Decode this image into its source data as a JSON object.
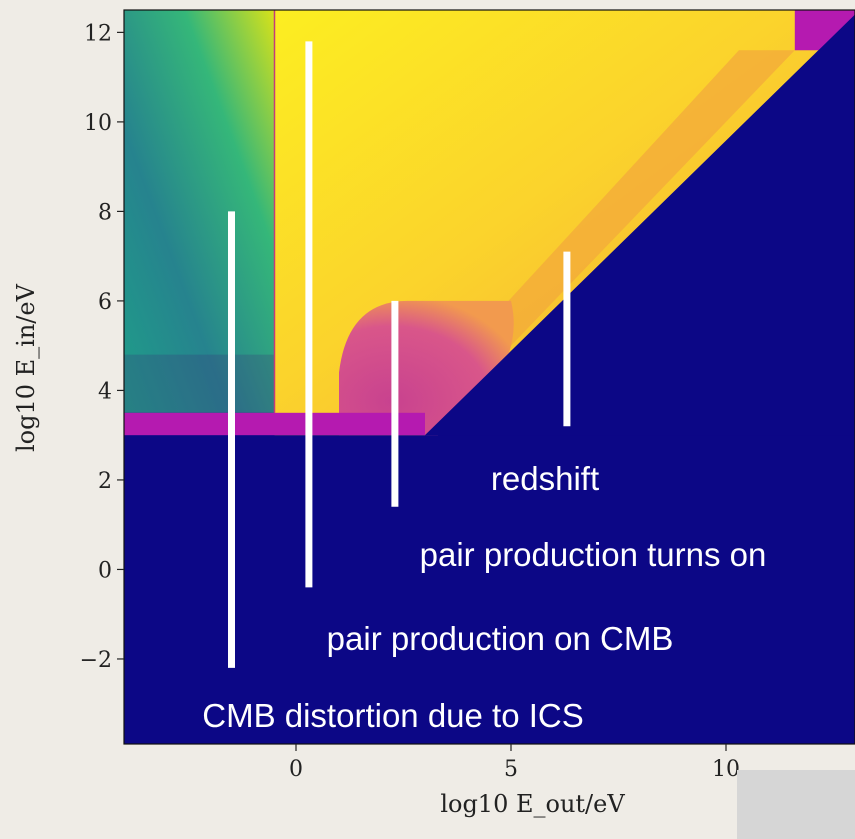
{
  "chart_data": {
    "type": "heatmap",
    "title": "",
    "xlabel": "log10 E_out/eV",
    "ylabel": "log10 E_in/eV",
    "xlim": [
      -4,
      13
    ],
    "ylim": [
      -3.9,
      12.5
    ],
    "xticks": [
      0,
      5,
      10
    ],
    "yticks": [
      -2,
      0,
      2,
      4,
      6,
      8,
      10,
      12
    ],
    "colormaps": [
      "viridis",
      "plasma"
    ],
    "regions": [
      {
        "name": "below threshold",
        "x": [
          -4,
          13
        ],
        "y": [
          -3.9,
          3.0
        ],
        "color": "#0c0786"
      },
      {
        "name": "E_out > E_in",
        "polygon_data": [
          [
            3.0,
            3.0
          ],
          [
            13,
            3.0
          ],
          [
            13,
            12.4
          ]
        ],
        "color": "#0c0786"
      },
      {
        "name": "threshold band",
        "x": [
          -4,
          3.0
        ],
        "y": [
          3.0,
          3.5
        ],
        "color": "#b51ab0"
      },
      {
        "name": "ICS CMB region",
        "x": [
          -4,
          -0.5
        ],
        "y": [
          3.5,
          12.5
        ],
        "color_low": "#1e9a88",
        "color_high": "#c6e33c"
      },
      {
        "name": "pair production",
        "x": [
          -0.5,
          11.5
        ],
        "y": [
          3.5,
          12.5
        ],
        "color": "#f9d028"
      },
      {
        "name": "pair production turns on",
        "x": [
          1.0,
          5.0
        ],
        "y": [
          3.0,
          6.0
        ],
        "color": "#cf4c8c"
      }
    ],
    "annotations": [
      {
        "text": "redshift",
        "marker_x": 6.3,
        "marker_y": [
          3.2,
          7.1
        ]
      },
      {
        "text": "pair production turns on",
        "marker_x": 2.3,
        "marker_y": [
          1.4,
          6.0
        ]
      },
      {
        "text": "pair production on CMB",
        "marker_x": 0.3,
        "marker_y": [
          -0.4,
          11.8
        ]
      },
      {
        "text": "CMB distortion due to ICS",
        "marker_x": -1.5,
        "marker_y": [
          -2.2,
          8.0
        ]
      }
    ]
  }
}
